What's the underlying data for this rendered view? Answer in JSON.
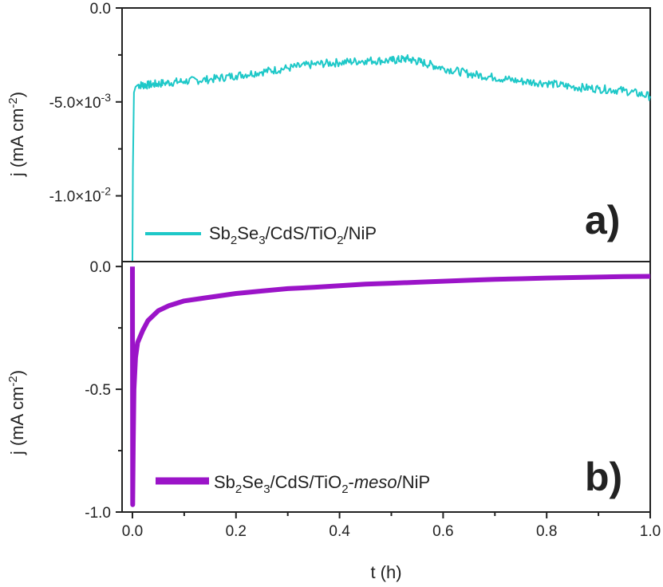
{
  "chart_data": [
    {
      "type": "line",
      "panel_label": "a)",
      "ylabel": "j (mA cm⁻²)",
      "ylim": [
        -0.0135,
        0.0
      ],
      "yticks": [
        {
          "value": 0.0,
          "label": "0.0"
        },
        {
          "value": -0.005,
          "label": "-5.0×10⁻³"
        },
        {
          "value": -0.01,
          "label": "-1.0×10⁻²"
        }
      ],
      "xlim": [
        -0.02,
        1.0
      ],
      "legend_placement": "bottom-left",
      "color": "#1ec8c8",
      "series": [
        {
          "name": "Sb₂Se₃/CdS/TiO₂/NiP",
          "x": [
            0.0,
            0.001,
            0.003,
            0.006,
            0.01,
            0.03,
            0.06,
            0.1,
            0.15,
            0.2,
            0.25,
            0.3,
            0.35,
            0.4,
            0.45,
            0.5,
            0.53,
            0.56,
            0.6,
            0.65,
            0.7,
            0.75,
            0.8,
            0.85,
            0.9,
            0.95,
            1.0
          ],
          "y": [
            -0.0135,
            -0.0085,
            -0.0045,
            -0.0042,
            -0.0041,
            -0.0041,
            -0.004,
            -0.0039,
            -0.0038,
            -0.0036,
            -0.0034,
            -0.0032,
            -0.003,
            -0.0029,
            -0.0028,
            -0.0028,
            -0.0027,
            -0.0029,
            -0.0032,
            -0.0035,
            -0.0037,
            -0.0039,
            -0.004,
            -0.0042,
            -0.0043,
            -0.0044,
            -0.0047
          ]
        }
      ]
    },
    {
      "type": "line",
      "panel_label": "b)",
      "ylabel": "j (mA cm⁻²)",
      "xlabel": "t (h)",
      "ylim": [
        -1.0,
        0.02
      ],
      "yticks": [
        {
          "value": 0.0,
          "label": "0.0"
        },
        {
          "value": -0.5,
          "label": "-0.5"
        },
        {
          "value": -1.0,
          "label": "-1.0"
        }
      ],
      "xlim": [
        -0.02,
        1.0
      ],
      "xticks": [
        {
          "value": 0.0,
          "label": "0.0"
        },
        {
          "value": 0.2,
          "label": "0.2"
        },
        {
          "value": 0.4,
          "label": "0.4"
        },
        {
          "value": 0.6,
          "label": "0.6"
        },
        {
          "value": 0.8,
          "label": "0.8"
        },
        {
          "value": 1.0,
          "label": "1.0"
        }
      ],
      "legend_placement": "bottom-left",
      "color": "#9b14c8",
      "series": [
        {
          "name": "Sb₂Se₃/CdS/TiO₂-meso/NiP",
          "x": [
            0.0,
            0.0005,
            0.0015,
            0.003,
            0.006,
            0.01,
            0.02,
            0.03,
            0.05,
            0.07,
            0.1,
            0.15,
            0.2,
            0.25,
            0.3,
            0.35,
            0.4,
            0.45,
            0.5,
            0.55,
            0.6,
            0.65,
            0.7,
            0.75,
            0.8,
            0.85,
            0.9,
            0.95,
            1.0
          ],
          "y": [
            0.0,
            -0.97,
            -0.72,
            -0.5,
            -0.37,
            -0.31,
            -0.26,
            -0.22,
            -0.18,
            -0.16,
            -0.14,
            -0.125,
            -0.11,
            -0.1,
            -0.09,
            -0.085,
            -0.078,
            -0.072,
            -0.068,
            -0.064,
            -0.06,
            -0.056,
            -0.052,
            -0.05,
            -0.047,
            -0.045,
            -0.043,
            -0.041,
            -0.04
          ]
        }
      ]
    }
  ]
}
